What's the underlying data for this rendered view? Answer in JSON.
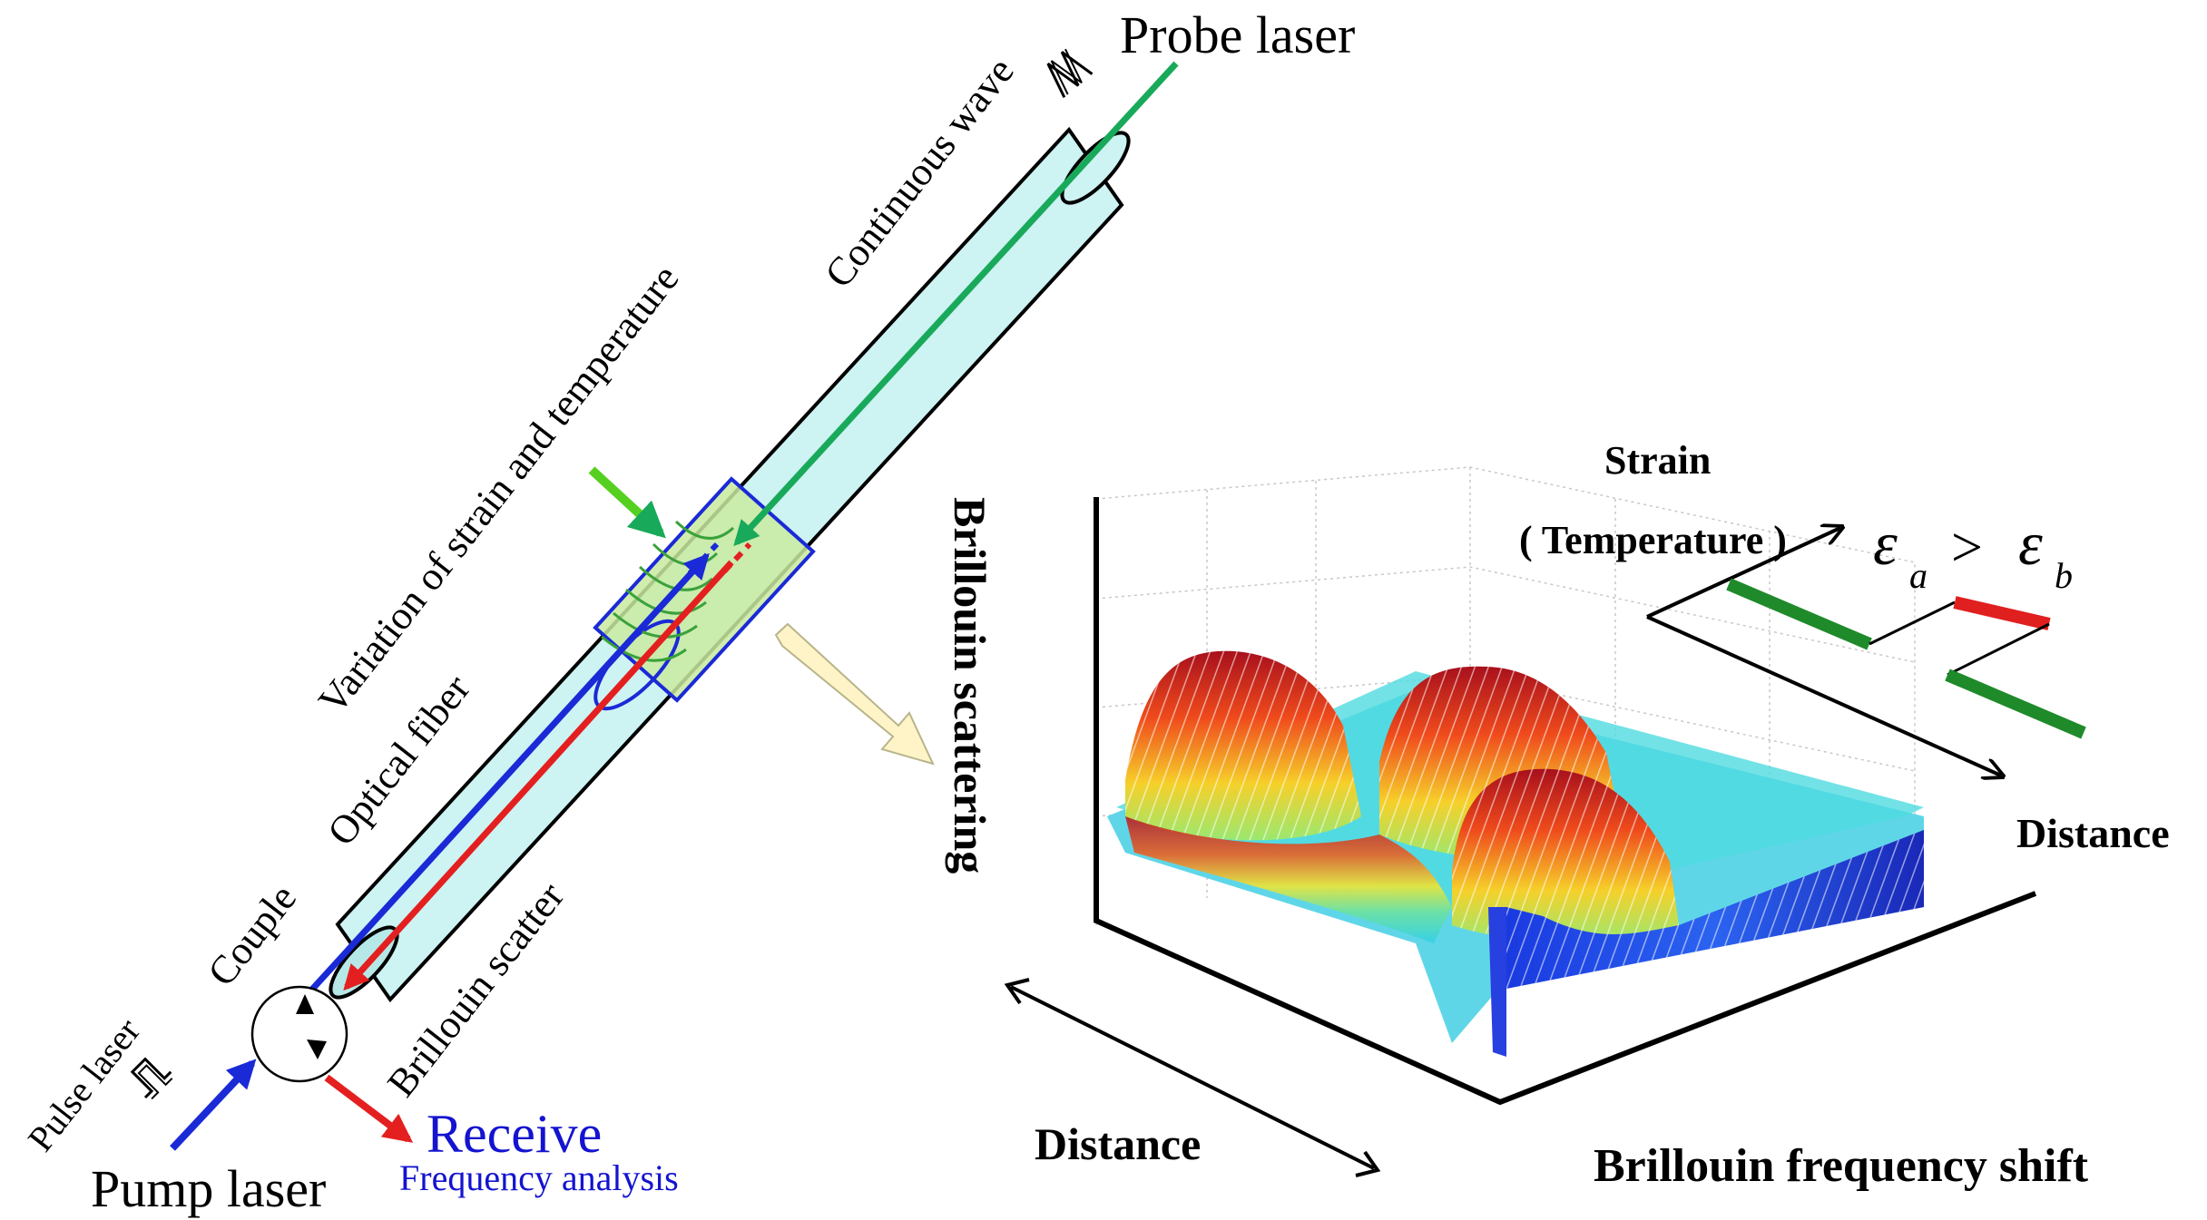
{
  "labels": {
    "probe_laser": "Probe laser",
    "continuous_wave": "Continuous wave",
    "variation": "Variation of strain and temperature",
    "optical_fiber": "Optical fiber",
    "couple": "Couple",
    "pulse_laser": "Pulse laser",
    "brillouin_scatter": "Brillouin scatter",
    "receive": "Receive",
    "frequency_analysis": "Frequency analysis",
    "pump_laser": "Pump laser",
    "brillouin_scattering": "Brillouin scattering",
    "strain": "Strain",
    "temperature": "( Temperature )",
    "strain_relation": "> ",
    "eps": "ε",
    "sub_a": "a",
    "sub_b": "b",
    "distance_right": "Distance",
    "distance_bottom": "Distance",
    "freq_shift": "Brillouin frequency shift"
  },
  "colors": {
    "fiber_fill": "#cdf3f3",
    "highlight_fill": "#c9eaa0",
    "pump_blue": "#1a2ad6",
    "scatter_red": "#e41f1f",
    "probe_green": "#19a95a",
    "strain_green": "#1f8a2a",
    "strain_red": "#e01f1f",
    "text_blue": "#1313d0",
    "pointer_fill": "#fff4c8",
    "green_arrow": "#55d020"
  },
  "icons": {
    "pulse": "pulse-waveform-icon",
    "continuous": "continuous-waveform-icon",
    "coupler": "circulator-icon"
  }
}
